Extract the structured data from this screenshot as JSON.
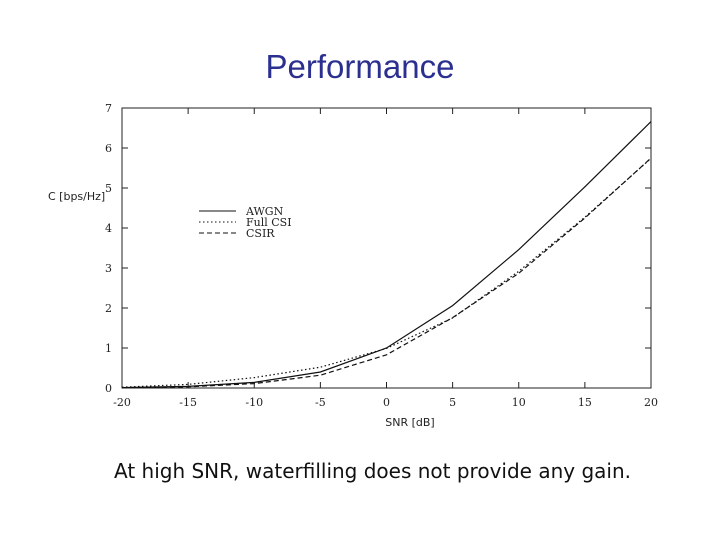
{
  "slide": {
    "title": "Performance",
    "caption": "At high SNR, waterfilling does not provide any gain."
  },
  "colors": {
    "title": "#2b2f8f",
    "line": "#111111"
  },
  "chart_data": {
    "type": "line",
    "title": "",
    "xlabel": "SNR [dB]",
    "ylabel": "C [bps/Hz]",
    "xlim": [
      -20,
      20
    ],
    "ylim": [
      0,
      7
    ],
    "xticks": [
      -20,
      -15,
      -10,
      -5,
      0,
      5,
      10,
      15,
      20
    ],
    "yticks": [
      0,
      1,
      2,
      3,
      4,
      5,
      6,
      7
    ],
    "legend_position": "center-left",
    "series": [
      {
        "name": "AWGN",
        "style": "solid",
        "x": [
          -20,
          -15,
          -10,
          -5,
          0,
          5,
          10,
          15,
          20
        ],
        "y": [
          0.01,
          0.04,
          0.14,
          0.4,
          1.0,
          2.06,
          3.46,
          5.03,
          6.66
        ]
      },
      {
        "name": "Full CSI",
        "style": "dotted",
        "x": [
          -20,
          -15,
          -10,
          -5,
          0,
          5,
          10,
          15,
          20
        ],
        "y": [
          0.02,
          0.09,
          0.26,
          0.52,
          0.99,
          1.75,
          2.92,
          4.27,
          5.74
        ]
      },
      {
        "name": "CSIR",
        "style": "dashed",
        "x": [
          -20,
          -15,
          -10,
          -5,
          0,
          5,
          10,
          15,
          20
        ],
        "y": [
          0.01,
          0.03,
          0.11,
          0.32,
          0.83,
          1.76,
          2.87,
          4.25,
          5.75
        ]
      }
    ]
  }
}
